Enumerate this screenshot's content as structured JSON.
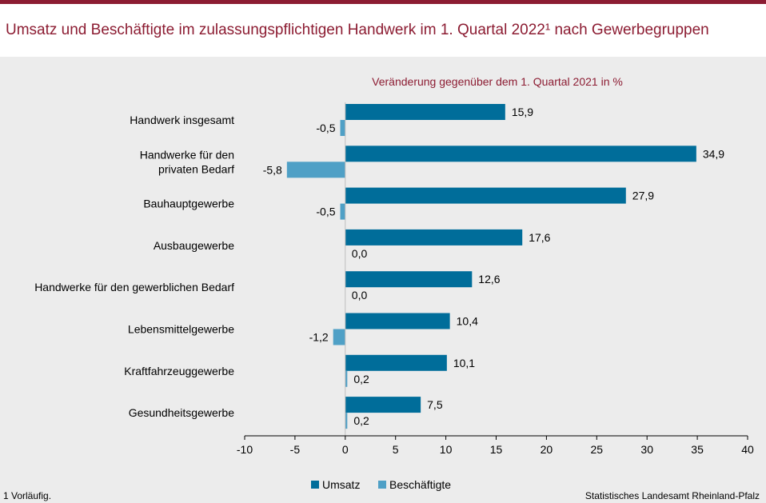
{
  "title": "Umsatz und Beschäftigte im zulassungspflichtigen Handwerk im 1. Quartal 2022¹ nach Gewerbegruppen",
  "footnote": "1 Vorläufig.",
  "source": "Statistisches Landesamt Rheinland-Pfalz",
  "chart_data": {
    "type": "bar",
    "orientation": "horizontal",
    "subtitle": "Veränderung gegenüber dem 1. Quartal 2021 in %",
    "categories": [
      [
        "Handwerk insgesamt"
      ],
      [
        "Handwerke für den",
        "privaten Bedarf"
      ],
      [
        "Bauhauptgewerbe"
      ],
      [
        "Ausbaugewerbe"
      ],
      [
        "Handwerke für den gewerblichen Bedarf"
      ],
      [
        "Lebensmittelgewerbe"
      ],
      [
        "Kraftfahrzeuggewerbe"
      ],
      [
        "Gesundheitsgewerbe"
      ]
    ],
    "series": [
      {
        "name": "Umsatz",
        "color": "#006d9a",
        "values": [
          15.9,
          34.9,
          27.9,
          17.6,
          12.6,
          10.4,
          10.1,
          7.5
        ]
      },
      {
        "name": "Beschäftigte",
        "color": "#4fa0c6",
        "values": [
          -0.5,
          -5.8,
          -0.5,
          0.0,
          0.0,
          -1.2,
          0.2,
          0.2
        ]
      }
    ],
    "xlim": [
      -10,
      40
    ],
    "xticks": [
      -10,
      -5,
      0,
      5,
      10,
      15,
      20,
      25,
      30,
      35,
      40
    ],
    "legend": "bottom-center",
    "title_color": "#8c1c32"
  }
}
